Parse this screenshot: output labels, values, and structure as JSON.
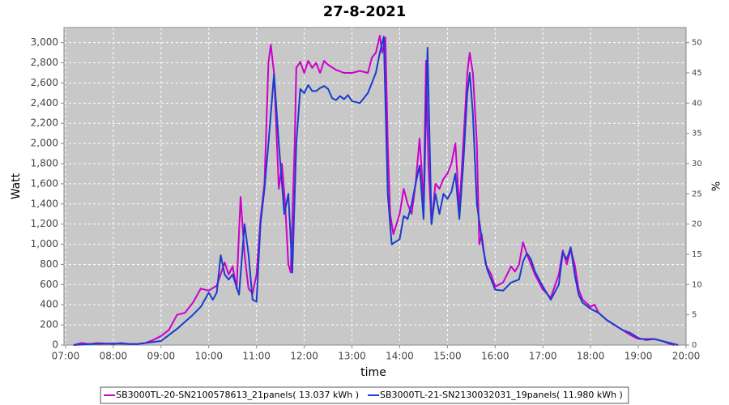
{
  "chart_data": {
    "type": "line",
    "title": "27-8-2021",
    "x_label": "time",
    "y_label": "Watt",
    "y2_label": "%",
    "xlim": [
      "06:58",
      "20:00"
    ],
    "xticks": [
      "07:00",
      "08:00",
      "09:00",
      "10:00",
      "11:00",
      "12:00",
      "13:00",
      "14:00",
      "15:00",
      "16:00",
      "17:00",
      "18:00",
      "19:00",
      "20:00"
    ],
    "ylim": [
      0,
      3150
    ],
    "yticks": [
      0,
      200,
      400,
      600,
      800,
      {
        "value": 1000,
        "label": "1,000"
      },
      {
        "value": 1200,
        "label": "1,200"
      },
      {
        "value": 1400,
        "label": "1,400"
      },
      {
        "value": 1600,
        "label": "1,600"
      },
      {
        "value": 1800,
        "label": "1,800"
      },
      {
        "value": 2000,
        "label": "2,000"
      },
      {
        "value": 2200,
        "label": "2,200"
      },
      {
        "value": 2400,
        "label": "2,400"
      },
      {
        "value": 2600,
        "label": "2,600"
      },
      {
        "value": 2800,
        "label": "2,800"
      },
      {
        "value": 3000,
        "label": "3,000"
      }
    ],
    "y2lim": [
      0,
      52.5
    ],
    "y2ticks": [
      0,
      5,
      10,
      15,
      20,
      25,
      30,
      35,
      40,
      45,
      50
    ],
    "grid": true,
    "legend": "bottom",
    "series": [
      {
        "name": "SB3000TL-20-SN2100578613_21panels( 13.037 kWh )",
        "color": "#cc00cc",
        "x": [
          "07:10",
          "07:20",
          "07:30",
          "07:40",
          "07:50",
          "08:00",
          "08:10",
          "08:20",
          "08:30",
          "08:40",
          "08:50",
          "09:00",
          "09:10",
          "09:20",
          "09:30",
          "09:40",
          "09:50",
          "10:00",
          "10:10",
          "10:20",
          "10:25",
          "10:30",
          "10:35",
          "10:40",
          "10:45",
          "10:50",
          "10:55",
          "11:00",
          "11:05",
          "11:10",
          "11:15",
          "11:18",
          "11:22",
          "11:28",
          "11:32",
          "11:36",
          "11:40",
          "11:43",
          "11:48",
          "11:50",
          "11:55",
          "12:00",
          "12:05",
          "12:10",
          "12:15",
          "12:20",
          "12:25",
          "12:30",
          "12:40",
          "12:50",
          "13:00",
          "13:10",
          "13:20",
          "13:25",
          "13:30",
          "13:35",
          "13:38",
          "13:42",
          "13:45",
          "13:48",
          "13:52",
          "14:00",
          "14:05",
          "14:10",
          "14:15",
          "14:20",
          "14:25",
          "14:28",
          "14:30",
          "14:33",
          "14:36",
          "14:40",
          "14:45",
          "14:50",
          "14:55",
          "15:00",
          "15:05",
          "15:10",
          "15:15",
          "15:20",
          "15:25",
          "15:28",
          "15:32",
          "15:37",
          "15:40",
          "15:43",
          "15:48",
          "15:55",
          "16:00",
          "16:10",
          "16:20",
          "16:25",
          "16:30",
          "16:35",
          "16:40",
          "16:50",
          "17:00",
          "17:10",
          "17:20",
          "17:25",
          "17:30",
          "17:35",
          "17:40",
          "17:45",
          "17:50",
          "18:00",
          "18:05",
          "18:10",
          "18:20",
          "18:30",
          "18:40",
          "18:50",
          "19:00",
          "19:10",
          "19:20",
          "19:30",
          "19:40",
          "19:45"
        ],
        "values": [
          0,
          20,
          10,
          20,
          15,
          10,
          20,
          10,
          10,
          20,
          50,
          90,
          150,
          300,
          320,
          420,
          560,
          540,
          590,
          820,
          700,
          780,
          560,
          1470,
          900,
          560,
          510,
          700,
          1250,
          1600,
          2800,
          2980,
          2700,
          1550,
          1800,
          1400,
          800,
          720,
          2000,
          2750,
          2810,
          2700,
          2820,
          2750,
          2800,
          2700,
          2820,
          2780,
          2730,
          2700,
          2700,
          2720,
          2700,
          2850,
          2900,
          3070,
          2900,
          3050,
          2000,
          1300,
          1100,
          1300,
          1550,
          1400,
          1300,
          1600,
          2050,
          1700,
          1300,
          2820,
          1800,
          1200,
          1600,
          1550,
          1650,
          1700,
          1800,
          2000,
          1350,
          2000,
          2700,
          2900,
          2700,
          2000,
          1000,
          1100,
          800,
          700,
          580,
          620,
          780,
          730,
          800,
          1020,
          900,
          700,
          550,
          470,
          700,
          940,
          800,
          950,
          800,
          550,
          450,
          380,
          400,
          320,
          250,
          200,
          150,
          100,
          60,
          60,
          60,
          40,
          10,
          0
        ]
      },
      {
        "name": "SB3000TL-21-SN2130032031_19panels( 11.980 kWh )",
        "color": "#1a3ccc",
        "x": [
          "07:10",
          "07:30",
          "08:00",
          "08:30",
          "08:50",
          "09:00",
          "09:10",
          "09:20",
          "09:30",
          "09:40",
          "09:50",
          "10:00",
          "10:05",
          "10:10",
          "10:15",
          "10:20",
          "10:25",
          "10:30",
          "10:38",
          "10:45",
          "10:50",
          "10:55",
          "11:00",
          "11:05",
          "11:10",
          "11:15",
          "11:22",
          "11:28",
          "11:35",
          "11:40",
          "11:45",
          "11:50",
          "11:55",
          "12:00",
          "12:05",
          "12:10",
          "12:15",
          "12:20",
          "12:25",
          "12:30",
          "12:35",
          "12:40",
          "12:45",
          "12:50",
          "12:55",
          "13:00",
          "13:10",
          "13:20",
          "13:30",
          "13:35",
          "13:40",
          "13:45",
          "13:50",
          "14:00",
          "14:05",
          "14:10",
          "14:15",
          "14:20",
          "14:25",
          "14:30",
          "14:35",
          "14:40",
          "14:45",
          "14:50",
          "14:55",
          "15:00",
          "15:05",
          "15:10",
          "15:15",
          "15:20",
          "15:25",
          "15:28",
          "15:32",
          "15:37",
          "15:45",
          "15:50",
          "16:00",
          "16:10",
          "16:20",
          "16:30",
          "16:35",
          "16:40",
          "16:45",
          "16:50",
          "17:00",
          "17:10",
          "17:20",
          "17:25",
          "17:30",
          "17:35",
          "17:40",
          "17:45",
          "17:50",
          "18:00",
          "18:10",
          "18:20",
          "18:30",
          "18:40",
          "18:50",
          "19:00",
          "19:10",
          "19:20",
          "19:30",
          "19:40",
          "19:50"
        ],
        "values": [
          0,
          10,
          15,
          10,
          30,
          40,
          100,
          160,
          230,
          300,
          380,
          520,
          450,
          520,
          890,
          700,
          650,
          700,
          500,
          1200,
          900,
          450,
          430,
          1200,
          1550,
          2000,
          2690,
          2000,
          1300,
          1500,
          720,
          2000,
          2540,
          2500,
          2580,
          2520,
          2520,
          2550,
          2570,
          2540,
          2450,
          2430,
          2470,
          2440,
          2480,
          2420,
          2400,
          2500,
          2700,
          2900,
          3060,
          1500,
          1000,
          1050,
          1280,
          1250,
          1400,
          1600,
          1780,
          1250,
          2950,
          1200,
          1500,
          1300,
          1500,
          1450,
          1520,
          1700,
          1250,
          1800,
          2500,
          2700,
          2300,
          1400,
          950,
          750,
          550,
          540,
          620,
          650,
          830,
          910,
          850,
          730,
          580,
          450,
          600,
          920,
          850,
          970,
          700,
          500,
          420,
          360,
          320,
          250,
          200,
          150,
          120,
          70,
          50,
          60,
          40,
          20,
          0
        ]
      }
    ]
  }
}
